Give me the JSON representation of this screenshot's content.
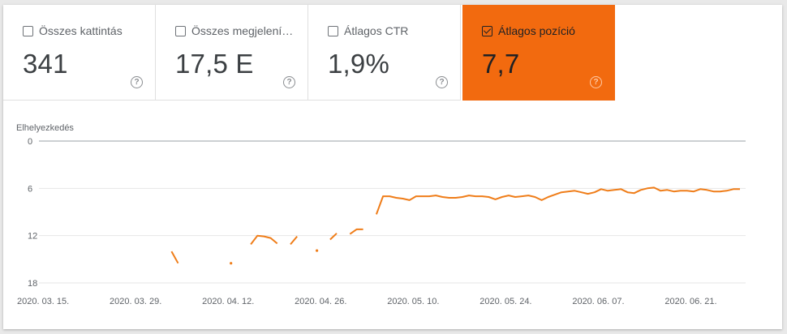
{
  "metrics": [
    {
      "label": "Összes kattintás",
      "value": "341",
      "checked": false,
      "help": "?"
    },
    {
      "label": "Összes megjelení…",
      "value": "17,5 E",
      "checked": false,
      "help": "?"
    },
    {
      "label": "Átlagos CTR",
      "value": "1,9%",
      "checked": false,
      "help": "?"
    },
    {
      "label": "Átlagos pozíció",
      "value": "7,7",
      "checked": true,
      "help": "?"
    }
  ],
  "colors": {
    "accent": "#f26a0f",
    "line": "#ef7d19"
  },
  "chart_data": {
    "type": "line",
    "ylabel": "Elhelyezkedés",
    "y_inverted": true,
    "ylim": [
      0,
      18
    ],
    "yticks": [
      "0",
      "6",
      "12",
      "18"
    ],
    "xticks": [
      "2020. 03. 15.",
      "2020. 03. 29.",
      "2020. 04. 12.",
      "2020. 04. 26.",
      "2020. 05. 10.",
      "2020. 05. 24.",
      "2020. 06. 07.",
      "2020. 06. 21."
    ],
    "x_start": "2020-03-15",
    "series": [
      {
        "values": [
          null,
          null,
          null,
          null,
          null,
          null,
          null,
          null,
          null,
          null,
          null,
          null,
          null,
          null,
          null,
          null,
          null,
          null,
          null,
          null,
          null,
          null,
          null,
          14.0,
          15.5,
          null,
          null,
          null,
          null,
          null,
          null,
          null,
          15.5,
          null,
          null,
          13.1,
          12.0,
          12.1,
          12.3,
          13.0,
          null,
          13.1,
          12.1,
          null,
          null,
          13.9,
          null,
          12.5,
          11.7,
          null,
          11.8,
          11.2,
          11.2,
          null,
          9.3,
          7.0,
          7.0,
          7.2,
          7.3,
          7.5,
          7.0,
          7.0,
          7.0,
          6.9,
          7.1,
          7.2,
          7.2,
          7.1,
          6.9,
          7.0,
          7.0,
          7.1,
          7.4,
          7.1,
          6.9,
          7.1,
          7.0,
          6.9,
          7.1,
          7.5,
          7.1,
          6.8,
          6.5,
          6.4,
          6.3,
          6.5,
          6.7,
          6.5,
          6.1,
          6.3,
          6.2,
          6.1,
          6.5,
          6.6,
          6.2,
          6.0,
          5.9,
          6.3,
          6.2,
          6.4,
          6.3,
          6.3,
          6.4,
          6.1,
          6.2,
          6.4,
          6.4,
          6.3,
          6.1,
          6.1
        ]
      }
    ]
  }
}
